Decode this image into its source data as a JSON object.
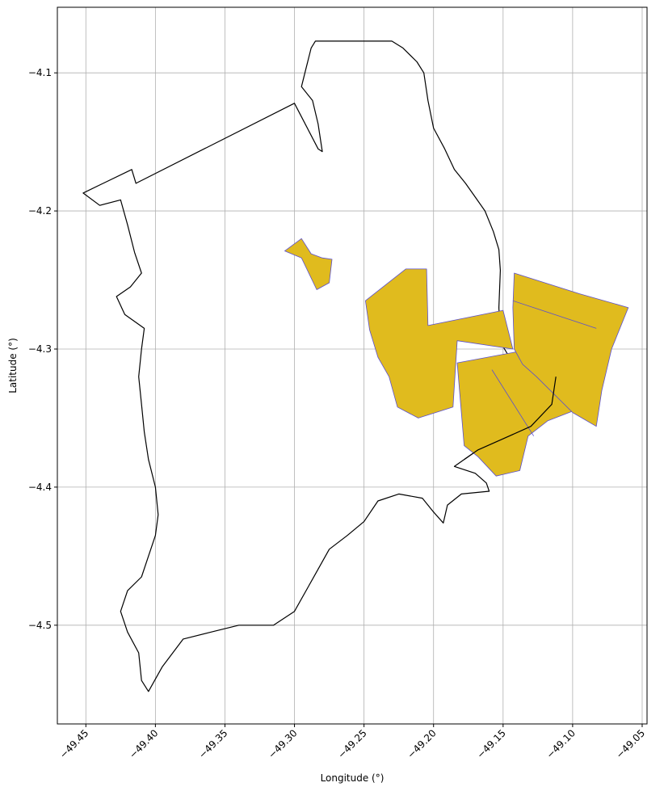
{
  "chart_data": {
    "type": "map",
    "xlabel": "Longitude (°)",
    "ylabel": "Latitude (°)",
    "xlim": [
      -49.4705,
      -49.0465
    ],
    "ylim": [
      -4.5715,
      -4.0525
    ],
    "grid": true,
    "x_ticks": [
      {
        "value": -49.45,
        "label": "−49.45"
      },
      {
        "value": -49.4,
        "label": "−49.40"
      },
      {
        "value": -49.35,
        "label": "−49.35"
      },
      {
        "value": -49.3,
        "label": "−49.30"
      },
      {
        "value": -49.25,
        "label": "−49.25"
      },
      {
        "value": -49.2,
        "label": "−49.20"
      },
      {
        "value": -49.15,
        "label": "−49.15"
      },
      {
        "value": -49.1,
        "label": "−49.10"
      },
      {
        "value": -49.05,
        "label": "−49.05"
      }
    ],
    "y_ticks": [
      {
        "value": -4.1,
        "label": "−4.1"
      },
      {
        "value": -4.2,
        "label": "−4.2"
      },
      {
        "value": -4.3,
        "label": "−4.3"
      },
      {
        "value": -4.4,
        "label": "−4.4"
      },
      {
        "value": -4.5,
        "label": "−4.5"
      }
    ],
    "colors": {
      "boundary": "#000000",
      "highlight_fill": "#e0bb1e",
      "highlight_edge": "#5a4fd0",
      "grid": "#b0b0b0"
    },
    "features": [
      {
        "name": "boundary",
        "style": "outline",
        "coordinates": [
          [
            -49.452,
            -4.187
          ],
          [
            -49.417,
            -4.17
          ],
          [
            -49.414,
            -4.18
          ],
          [
            -49.3,
            -4.122
          ],
          [
            -49.283,
            -4.155
          ],
          [
            -49.28,
            -4.157
          ],
          [
            -49.283,
            -4.137
          ],
          [
            -49.287,
            -4.12
          ],
          [
            -49.295,
            -4.11
          ],
          [
            -49.292,
            -4.098
          ],
          [
            -49.288,
            -4.082
          ],
          [
            -49.285,
            -4.077
          ],
          [
            -49.23,
            -4.077
          ],
          [
            -49.222,
            -4.082
          ],
          [
            -49.212,
            -4.092
          ],
          [
            -49.207,
            -4.1
          ],
          [
            -49.204,
            -4.12
          ],
          [
            -49.2,
            -4.14
          ],
          [
            -49.192,
            -4.155
          ],
          [
            -49.185,
            -4.17
          ],
          [
            -49.177,
            -4.18
          ],
          [
            -49.17,
            -4.19
          ],
          [
            -49.163,
            -4.2
          ],
          [
            -49.157,
            -4.215
          ],
          [
            -49.153,
            -4.228
          ],
          [
            -49.152,
            -4.243
          ],
          [
            -49.153,
            -4.27
          ],
          [
            -49.152,
            -4.295
          ],
          [
            -49.146,
            -4.305
          ],
          [
            -49.135,
            -4.312
          ],
          [
            -49.126,
            -4.318
          ],
          [
            -49.12,
            -4.322
          ],
          [
            -49.112,
            -4.32
          ],
          [
            -49.115,
            -4.34
          ],
          [
            -49.13,
            -4.356
          ],
          [
            -49.15,
            -4.365
          ],
          [
            -49.168,
            -4.373
          ],
          [
            -49.178,
            -4.38
          ],
          [
            -49.185,
            -4.385
          ],
          [
            -49.17,
            -4.39
          ],
          [
            -49.162,
            -4.397
          ],
          [
            -49.16,
            -4.403
          ],
          [
            -49.18,
            -4.405
          ],
          [
            -49.19,
            -4.413
          ],
          [
            -49.193,
            -4.426
          ],
          [
            -49.2,
            -4.418
          ],
          [
            -49.208,
            -4.408
          ],
          [
            -49.225,
            -4.405
          ],
          [
            -49.24,
            -4.41
          ],
          [
            -49.25,
            -4.425
          ],
          [
            -49.262,
            -4.435
          ],
          [
            -49.275,
            -4.445
          ],
          [
            -49.285,
            -4.463
          ],
          [
            -49.3,
            -4.49
          ],
          [
            -49.315,
            -4.5
          ],
          [
            -49.33,
            -4.5
          ],
          [
            -49.34,
            -4.5
          ],
          [
            -49.36,
            -4.505
          ],
          [
            -49.38,
            -4.51
          ],
          [
            -49.395,
            -4.53
          ],
          [
            -49.405,
            -4.548
          ],
          [
            -49.41,
            -4.54
          ],
          [
            -49.412,
            -4.52
          ],
          [
            -49.42,
            -4.505
          ],
          [
            -49.425,
            -4.49
          ],
          [
            -49.42,
            -4.475
          ],
          [
            -49.41,
            -4.465
          ],
          [
            -49.405,
            -4.45
          ],
          [
            -49.4,
            -4.435
          ],
          [
            -49.398,
            -4.42
          ],
          [
            -49.4,
            -4.4
          ],
          [
            -49.405,
            -4.38
          ],
          [
            -49.408,
            -4.36
          ],
          [
            -49.41,
            -4.34
          ],
          [
            -49.412,
            -4.32
          ],
          [
            -49.41,
            -4.3
          ],
          [
            -49.408,
            -4.285
          ],
          [
            -49.422,
            -4.275
          ],
          [
            -49.428,
            -4.262
          ],
          [
            -49.418,
            -4.255
          ],
          [
            -49.41,
            -4.245
          ],
          [
            -49.415,
            -4.23
          ],
          [
            -49.42,
            -4.21
          ],
          [
            -49.425,
            -4.192
          ],
          [
            -49.44,
            -4.196
          ],
          [
            -49.452,
            -4.187
          ]
        ]
      },
      {
        "name": "highlight-small",
        "style": "highlight",
        "coordinates": [
          [
            -49.307,
            -4.229
          ],
          [
            -49.295,
            -4.22
          ],
          [
            -49.288,
            -4.231
          ],
          [
            -49.28,
            -4.234
          ],
          [
            -49.273,
            -4.235
          ],
          [
            -49.275,
            -4.252
          ],
          [
            -49.284,
            -4.257
          ],
          [
            -49.295,
            -4.234
          ],
          [
            -49.307,
            -4.229
          ]
        ]
      },
      {
        "name": "highlight-west",
        "style": "highlight",
        "coordinates": [
          [
            -49.249,
            -4.265
          ],
          [
            -49.22,
            -4.242
          ],
          [
            -49.205,
            -4.242
          ],
          [
            -49.204,
            -4.283
          ],
          [
            -49.15,
            -4.272
          ],
          [
            -49.143,
            -4.3
          ],
          [
            -49.183,
            -4.294
          ],
          [
            -49.186,
            -4.342
          ],
          [
            -49.211,
            -4.35
          ],
          [
            -49.226,
            -4.342
          ],
          [
            -49.232,
            -4.32
          ],
          [
            -49.24,
            -4.306
          ],
          [
            -49.246,
            -4.286
          ],
          [
            -49.249,
            -4.265
          ]
        ]
      },
      {
        "name": "highlight-south",
        "style": "highlight",
        "coordinates": [
          [
            -49.183,
            -4.31
          ],
          [
            -49.14,
            -4.302
          ],
          [
            -49.128,
            -4.31
          ],
          [
            -49.11,
            -4.322
          ],
          [
            -49.1,
            -4.345
          ],
          [
            -49.118,
            -4.352
          ],
          [
            -49.132,
            -4.363
          ],
          [
            -49.138,
            -4.388
          ],
          [
            -49.155,
            -4.392
          ],
          [
            -49.168,
            -4.378
          ],
          [
            -49.178,
            -4.37
          ],
          [
            -49.183,
            -4.31
          ]
        ]
      },
      {
        "name": "highlight-east",
        "style": "highlight",
        "coordinates": [
          [
            -49.142,
            -4.245
          ],
          [
            -49.095,
            -4.26
          ],
          [
            -49.06,
            -4.27
          ],
          [
            -49.072,
            -4.3
          ],
          [
            -49.079,
            -4.33
          ],
          [
            -49.083,
            -4.356
          ],
          [
            -49.1,
            -4.346
          ],
          [
            -49.126,
            -4.32
          ],
          [
            -49.136,
            -4.311
          ],
          [
            -49.142,
            -4.3
          ],
          [
            -49.143,
            -4.27
          ],
          [
            -49.142,
            -4.245
          ]
        ]
      },
      {
        "name": "internal-boundary-east",
        "style": "edge",
        "coordinates": [
          [
            -49.143,
            -4.265
          ],
          [
            -49.083,
            -4.285
          ]
        ]
      },
      {
        "name": "river",
        "style": "line",
        "coordinates": [
          [
            -49.112,
            -4.32
          ],
          [
            -49.115,
            -4.34
          ],
          [
            -49.13,
            -4.356
          ],
          [
            -49.15,
            -4.365
          ],
          [
            -49.168,
            -4.373
          ],
          [
            -49.178,
            -4.38
          ]
        ]
      },
      {
        "name": "internal-boundary-south",
        "style": "edge",
        "coordinates": [
          [
            -49.158,
            -4.315
          ],
          [
            -49.128,
            -4.363
          ]
        ]
      }
    ]
  }
}
